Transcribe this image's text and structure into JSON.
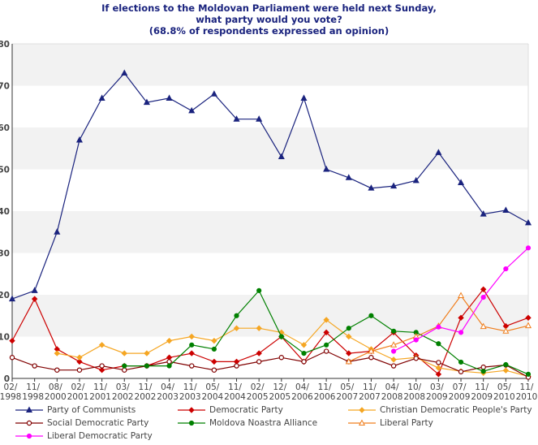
{
  "title_lines": [
    "If elections to the Moldovan Parliament were held next Sunday,",
    "what party would you vote?",
    "(68.8% of respondents expressed an opinion)"
  ],
  "chart_data": {
    "type": "line",
    "ylim": [
      0,
      80
    ],
    "yticks": [
      0,
      10,
      20,
      30,
      40,
      50,
      60,
      70,
      80
    ],
    "grid": "horizontal bands",
    "legend_position": "bottom",
    "categories": [
      [
        "02/",
        "1998"
      ],
      [
        "11/",
        "1998"
      ],
      [
        "08/",
        "2000"
      ],
      [
        "02/",
        "2001"
      ],
      [
        "11/",
        "2001"
      ],
      [
        "03/",
        "2002"
      ],
      [
        "11/",
        "2002"
      ],
      [
        "04/",
        "2003"
      ],
      [
        "11/",
        "2003"
      ],
      [
        "05/",
        "2004"
      ],
      [
        "11/",
        "2004"
      ],
      [
        "02/",
        "2005"
      ],
      [
        "12/",
        "2005"
      ],
      [
        "04/",
        "2006"
      ],
      [
        "11/",
        "2006"
      ],
      [
        "05/",
        "2007"
      ],
      [
        "11/",
        "2007"
      ],
      [
        "04/",
        "2008"
      ],
      [
        "10/",
        "2008"
      ],
      [
        "03/",
        "2009"
      ],
      [
        "07/",
        "2009"
      ],
      [
        "11/",
        "2009"
      ],
      [
        "05/",
        "2010"
      ],
      [
        "11/",
        "2010"
      ]
    ],
    "series": [
      {
        "name": "Party of Communists",
        "color": "#1a237e",
        "marker": "triangle-filled",
        "values": [
          19,
          21,
          35,
          57,
          67,
          73,
          66,
          67,
          64,
          68,
          62,
          62,
          53,
          67,
          50,
          48,
          45.5,
          46,
          47.3,
          54,
          46.8,
          39.3,
          40.2,
          37.2
        ]
      },
      {
        "name": "Democratic Party",
        "color": "#cc0000",
        "marker": "diamond-filled",
        "values": [
          9,
          19,
          7,
          4,
          2,
          3,
          3,
          5,
          6,
          4,
          4,
          6,
          10,
          4,
          11,
          6,
          6.5,
          11,
          5.5,
          1,
          14.5,
          21.3,
          12.5,
          14.5
        ]
      },
      {
        "name": "Christian Democratic People's Party",
        "color": "#f5a623",
        "marker": "diamond-filled",
        "values": [
          null,
          null,
          6,
          5,
          8,
          6,
          6,
          9,
          10,
          9,
          12,
          12,
          11,
          8,
          14,
          10,
          7,
          4.5,
          5,
          2.5,
          1.7,
          1.3,
          1.9,
          0.5
        ]
      },
      {
        "name": "Social Democratic Party",
        "color": "#800000",
        "marker": "circle-open",
        "values": [
          5,
          3,
          2,
          2,
          3,
          2,
          3,
          4,
          3,
          2,
          3,
          4,
          5,
          4,
          6.5,
          4,
          5,
          3,
          4.8,
          3.8,
          1.6,
          2.7,
          3.2,
          0.3
        ]
      },
      {
        "name": "Moldova Noastra Alliance",
        "color": "#008000",
        "marker": "circle-filled",
        "values": [
          null,
          null,
          null,
          null,
          null,
          3,
          3,
          3,
          8,
          7,
          15,
          21,
          10,
          6,
          8,
          12,
          15,
          11.3,
          11,
          8.3,
          3.9,
          1.7,
          3.3,
          1
        ]
      },
      {
        "name": "Liberal Party",
        "color": "#f07f1e",
        "marker": "triangle-open",
        "values": [
          null,
          null,
          null,
          null,
          null,
          null,
          null,
          null,
          null,
          null,
          null,
          null,
          null,
          null,
          null,
          4,
          6.5,
          8,
          10,
          12.5,
          19.8,
          12.4,
          11.3,
          12.6
        ]
      },
      {
        "name": "Liberal Democratic Party",
        "color": "#ff00ff",
        "marker": "circle-filled",
        "values": [
          null,
          null,
          null,
          null,
          null,
          null,
          null,
          null,
          null,
          null,
          null,
          null,
          null,
          null,
          null,
          null,
          null,
          6.5,
          9.2,
          12.3,
          11,
          19.4,
          26.2,
          31.2
        ]
      }
    ]
  }
}
